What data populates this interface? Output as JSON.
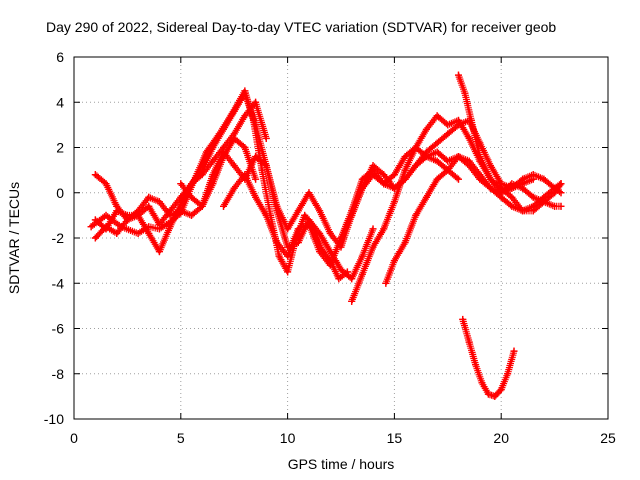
{
  "chart_data": {
    "type": "scatter",
    "title": "Day 290 of 2022, Sidereal Day-to-day VTEC variation (SDTVAR) for receiver geob",
    "xlabel": "GPS time / hours",
    "ylabel": "SDTVAR / TECUs",
    "xlim": [
      0,
      25
    ],
    "ylim": [
      -10,
      6
    ],
    "x_ticks": [
      0,
      5,
      10,
      15,
      20,
      25
    ],
    "y_ticks": [
      -10,
      -8,
      -6,
      -4,
      -2,
      0,
      2,
      4,
      6
    ],
    "x_tick_labels": [
      "0",
      "5",
      "10",
      "15",
      "20",
      "25"
    ],
    "y_tick_labels": [
      "-10",
      "-8",
      "-6",
      "-4",
      "-2",
      "0",
      "2",
      "4",
      "6"
    ],
    "grid": true,
    "marker": "+",
    "color": "#ff0000",
    "series": [
      {
        "name": "track-1",
        "x": [
          0.8,
          1.5,
          2.2,
          3.0,
          3.5,
          4.0,
          4.5,
          5.0,
          5.6,
          6.2,
          6.8,
          7.4,
          8.0,
          8.4,
          8.8,
          9.2,
          9.6,
          10.0,
          10.4,
          10.8,
          11.2,
          11.6,
          12.0,
          12.4,
          12.8
        ],
        "y": [
          -1.5,
          -1.0,
          -1.5,
          -1.8,
          -1.5,
          -1.6,
          -1.3,
          -0.9,
          0.5,
          1.8,
          2.6,
          3.5,
          4.5,
          3.2,
          1.0,
          -1.0,
          -2.8,
          -3.5,
          -2.0,
          -1.0,
          -1.5,
          -2.5,
          -3.0,
          -3.8,
          -3.5
        ]
      },
      {
        "name": "track-2",
        "x": [
          1.0,
          1.5,
          2.0,
          2.5,
          3.0,
          3.5,
          4.0,
          4.5,
          5.0,
          5.5,
          6.0,
          6.5,
          7.0,
          7.5,
          8.0,
          8.5,
          9.0,
          9.5,
          10.0,
          10.5,
          11.0,
          11.5,
          12.0,
          12.5,
          13.0,
          13.5,
          14.0
        ],
        "y": [
          -1.2,
          -1.6,
          -0.8,
          -1.0,
          -1.0,
          -1.8,
          -2.6,
          -1.5,
          -0.5,
          0.4,
          1.0,
          2.0,
          2.8,
          3.6,
          4.4,
          3.0,
          1.2,
          -0.8,
          -2.4,
          -2.2,
          -1.2,
          -1.8,
          -2.6,
          -3.4,
          -3.8,
          -2.8,
          -1.6
        ]
      },
      {
        "name": "track-3",
        "x": [
          1.0,
          1.5,
          2.0,
          2.5,
          3.0,
          3.5,
          4.0,
          4.5,
          5.0,
          5.5,
          6.0,
          6.5,
          7.0,
          7.5,
          8.0,
          8.5,
          9.0
        ],
        "y": [
          -2.0,
          -1.5,
          -1.8,
          -1.2,
          -1.0,
          -0.6,
          -1.4,
          -0.8,
          -0.2,
          0.4,
          0.8,
          1.4,
          2.0,
          2.6,
          3.4,
          4.0,
          2.4
        ]
      },
      {
        "name": "track-4",
        "x": [
          1.0,
          1.5,
          2.0,
          2.5,
          3.0,
          3.5,
          4.0,
          4.5,
          5.0,
          5.5,
          6.0,
          6.5,
          7.0,
          7.5,
          8.0,
          8.5
        ],
        "y": [
          0.8,
          0.4,
          -0.6,
          -1.2,
          -0.8,
          -0.2,
          -0.4,
          -1.0,
          -0.8,
          -1.0,
          -0.6,
          0.4,
          1.6,
          2.4,
          2.0,
          0.6
        ]
      },
      {
        "name": "track-5",
        "x": [
          5.0,
          5.5,
          6.0,
          6.5,
          7.0,
          7.5,
          8.0,
          8.5,
          9.0,
          9.5,
          10.0,
          10.5,
          11.0,
          11.5,
          12.0,
          12.5,
          13.0,
          13.5,
          14.0,
          14.5,
          15.0,
          15.5,
          16.0,
          16.5,
          17.0,
          17.5,
          18.0
        ],
        "y": [
          0.4,
          -0.2,
          -0.6,
          0.8,
          1.8,
          1.2,
          0.6,
          1.6,
          1.2,
          -0.6,
          -1.6,
          -0.8,
          0.0,
          -0.8,
          -1.8,
          -2.4,
          -1.0,
          0.2,
          0.8,
          0.4,
          0.2,
          0.6,
          1.2,
          1.6,
          1.4,
          1.0,
          0.6
        ]
      },
      {
        "name": "track-6",
        "x": [
          7.0,
          7.5,
          8.0,
          8.5,
          9.0,
          9.5,
          10.0,
          10.5,
          11.0,
          11.5,
          12.0,
          12.5,
          13.0,
          13.5,
          14.0,
          14.5,
          15.0,
          15.5,
          16.0,
          16.5,
          17.0,
          17.5,
          18.0,
          18.5,
          19.0,
          19.5,
          20.0,
          20.5,
          21.0,
          21.5,
          22.0,
          22.5,
          22.8
        ],
        "y": [
          -0.6,
          0.2,
          0.8,
          -0.2,
          -1.0,
          -2.2,
          -2.8,
          -1.6,
          -1.4,
          -2.6,
          -3.2,
          -2.0,
          -0.8,
          0.6,
          1.0,
          0.4,
          0.8,
          1.6,
          2.0,
          1.6,
          1.8,
          1.4,
          1.6,
          1.2,
          0.6,
          0.2,
          0.0,
          0.4,
          0.2,
          -0.2,
          -0.4,
          -0.6,
          -0.6
        ]
      },
      {
        "name": "track-7",
        "x": [
          12.5,
          13.0,
          13.5,
          14.0,
          14.5,
          15.0,
          15.5,
          16.0,
          16.5,
          17.0,
          17.5,
          18.0,
          18.5,
          19.0,
          19.5,
          20.0,
          20.5,
          21.0,
          21.5,
          22.0,
          22.5,
          22.8
        ],
        "y": [
          -2.0,
          -1.0,
          0.2,
          1.2,
          0.8,
          0.2,
          0.6,
          1.2,
          1.8,
          2.2,
          2.6,
          3.0,
          3.2,
          2.2,
          1.2,
          0.4,
          0.2,
          0.6,
          0.8,
          0.6,
          0.2,
          0.0
        ]
      },
      {
        "name": "track-8",
        "x": [
          13.0,
          13.5,
          14.0,
          14.5,
          15.0,
          15.5,
          16.0,
          16.5,
          17.0,
          17.5,
          18.0,
          18.5,
          19.0,
          19.5,
          20.0,
          20.5,
          21.0,
          21.5,
          22.0,
          22.5,
          22.8
        ],
        "y": [
          -4.8,
          -3.6,
          -2.4,
          -1.6,
          -0.4,
          1.0,
          2.0,
          2.8,
          3.4,
          3.0,
          3.2,
          2.4,
          1.4,
          0.6,
          0.2,
          -0.2,
          -0.8,
          -0.8,
          -0.4,
          0.0,
          0.4
        ]
      },
      {
        "name": "track-9",
        "x": [
          14.6,
          15.0,
          15.5,
          16.0,
          16.5,
          17.0,
          17.5,
          18.0,
          18.5,
          19.0,
          19.5,
          20.0,
          20.5,
          21.0,
          21.5,
          22.0,
          22.5,
          22.8
        ],
        "y": [
          -4.0,
          -3.0,
          -2.2,
          -1.0,
          -0.2,
          0.6,
          1.0,
          1.6,
          1.4,
          0.8,
          0.2,
          -0.2,
          -0.6,
          -0.8,
          -0.6,
          -0.2,
          0.2,
          0.4
        ]
      },
      {
        "name": "track-10",
        "x": [
          18.0,
          18.3,
          18.6,
          19.0,
          19.5,
          20.0,
          20.5,
          21.0,
          21.5
        ],
        "y": [
          5.2,
          4.4,
          3.2,
          1.6,
          0.6,
          0.0,
          0.2,
          0.4,
          0.6
        ]
      },
      {
        "name": "track-11",
        "x": [
          18.2,
          18.5,
          18.8,
          19.1,
          19.4,
          19.7,
          20.0,
          20.3,
          20.6
        ],
        "y": [
          -5.6,
          -6.6,
          -7.6,
          -8.4,
          -8.9,
          -9.0,
          -8.7,
          -8.0,
          -7.0
        ]
      }
    ]
  }
}
